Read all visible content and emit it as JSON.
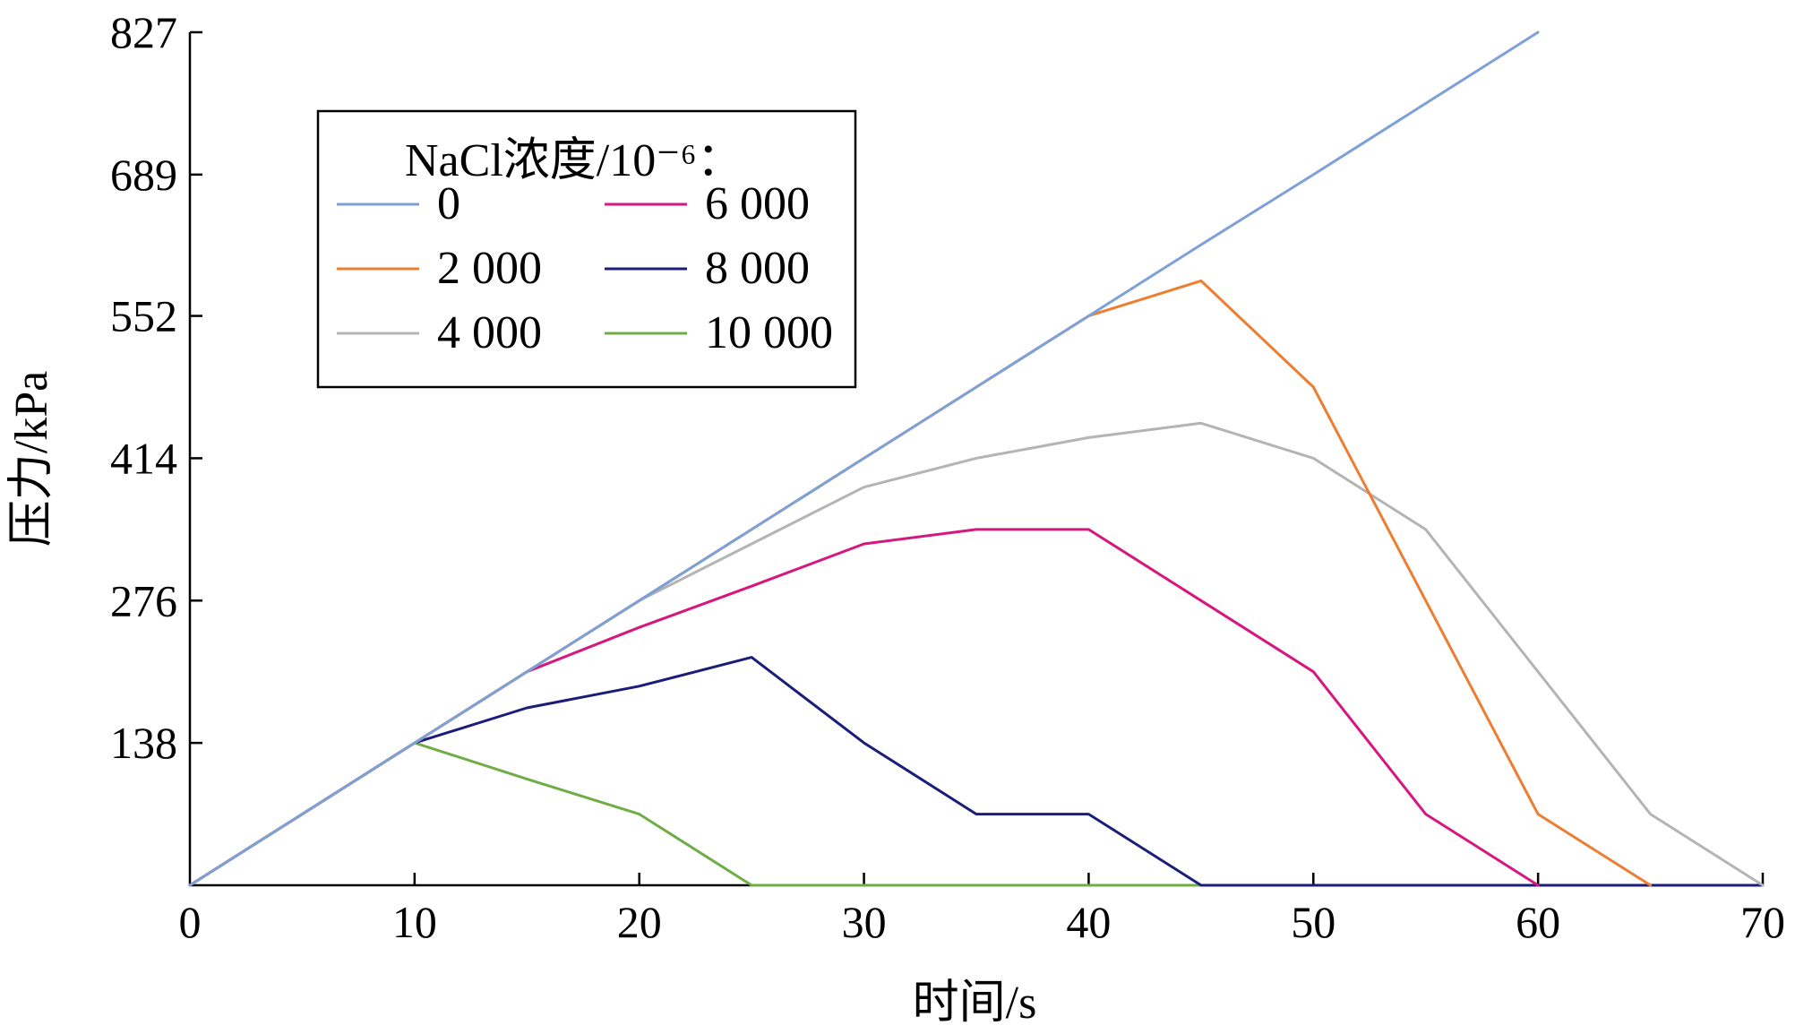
{
  "chart_data": {
    "type": "line",
    "xlabel": "时间/s",
    "ylabel": "压力/kPa",
    "xlim": [
      0,
      70
    ],
    "ylim": [
      0,
      827
    ],
    "x_ticks": [
      0,
      10,
      20,
      30,
      40,
      50,
      60,
      70
    ],
    "y_ticks": [
      138,
      276,
      414,
      552,
      689,
      827
    ],
    "legend": {
      "title": "NaCl浓度/10⁻⁶：",
      "placement": "top-left",
      "columns": 2
    },
    "series": [
      {
        "name": "0",
        "color": "#7da0d8",
        "points": [
          [
            0,
            0
          ],
          [
            5,
            69
          ],
          [
            10,
            138
          ],
          [
            15,
            207
          ],
          [
            20,
            276
          ],
          [
            25,
            345
          ],
          [
            30,
            414
          ],
          [
            35,
            483
          ],
          [
            40,
            552
          ],
          [
            45,
            621
          ],
          [
            50,
            689
          ],
          [
            55,
            758
          ],
          [
            60,
            827
          ]
        ]
      },
      {
        "name": "2 000",
        "color": "#ed7d31",
        "points": [
          [
            0,
            0
          ],
          [
            5,
            69
          ],
          [
            10,
            138
          ],
          [
            15,
            207
          ],
          [
            20,
            276
          ],
          [
            25,
            345
          ],
          [
            30,
            414
          ],
          [
            35,
            483
          ],
          [
            40,
            552
          ],
          [
            45,
            586
          ],
          [
            50,
            483
          ],
          [
            55,
            276
          ],
          [
            60,
            69
          ],
          [
            65,
            0
          ]
        ]
      },
      {
        "name": "4 000",
        "color": "#b4b4b4",
        "points": [
          [
            0,
            0
          ],
          [
            5,
            69
          ],
          [
            10,
            138
          ],
          [
            15,
            207
          ],
          [
            20,
            276
          ],
          [
            25,
            331
          ],
          [
            30,
            386
          ],
          [
            35,
            414
          ],
          [
            40,
            434
          ],
          [
            45,
            448
          ],
          [
            50,
            414
          ],
          [
            55,
            345
          ],
          [
            60,
            207
          ],
          [
            65,
            69
          ],
          [
            70,
            0
          ]
        ]
      },
      {
        "name": "6 000",
        "color": "#d6177d",
        "points": [
          [
            0,
            0
          ],
          [
            5,
            69
          ],
          [
            10,
            138
          ],
          [
            15,
            207
          ],
          [
            20,
            250
          ],
          [
            25,
            290
          ],
          [
            30,
            331
          ],
          [
            35,
            345
          ],
          [
            40,
            345
          ],
          [
            45,
            276
          ],
          [
            50,
            207
          ],
          [
            55,
            69
          ],
          [
            60,
            0
          ]
        ]
      },
      {
        "name": "8 000",
        "color": "#1a1e78",
        "points": [
          [
            0,
            0
          ],
          [
            5,
            69
          ],
          [
            10,
            138
          ],
          [
            15,
            172
          ],
          [
            20,
            193
          ],
          [
            25,
            221
          ],
          [
            30,
            138
          ],
          [
            35,
            69
          ],
          [
            40,
            69
          ],
          [
            45,
            0
          ],
          [
            70,
            0
          ]
        ]
      },
      {
        "name": "10 000",
        "color": "#70ad47",
        "points": [
          [
            0,
            0
          ],
          [
            5,
            69
          ],
          [
            10,
            138
          ],
          [
            15,
            103
          ],
          [
            20,
            69
          ],
          [
            25,
            0
          ],
          [
            70,
            0
          ]
        ]
      }
    ]
  }
}
